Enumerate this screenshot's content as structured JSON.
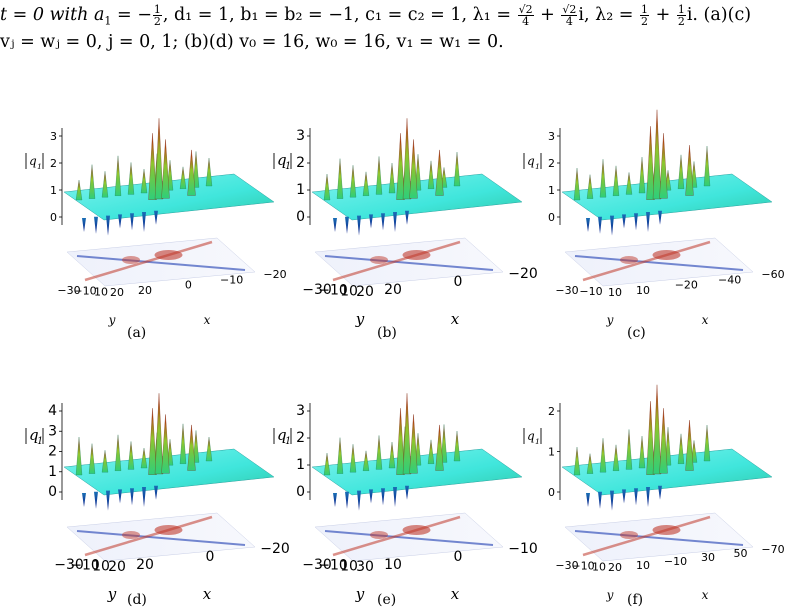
{
  "caption": {
    "line1": {
      "t_eq": "t = 0 with ",
      "a1": "a",
      "a1_sub": "1",
      "a1_eq": " = −",
      "half_num": "1",
      "half_den": "2",
      "d1_part": ", d₁ = 1, b₁ = b₂ = −1, c₁ = c₂ = 1, λ₁ = ",
      "sqrt2": "√2",
      "four": "4",
      "plus": " + ",
      "i_part": "i, λ₂ = ",
      "half2_num": "1",
      "half2_den": "2",
      "tail": "i. (a)(c)"
    },
    "line2": "vⱼ = wⱼ = 0, j = 0, 1; (b)(d) v₀ = 16, w₀ = 16, v₁ = w₁ = 0."
  },
  "axis_vars": {
    "q": "q",
    "q_sub": "1",
    "x": "x",
    "y": "y"
  },
  "panels": [
    {
      "id": "a",
      "label": "(a)",
      "z_ticks": [
        "0",
        "1",
        "2",
        "3"
      ],
      "y_ticks": [
        "−30",
        "−10",
        "10",
        "20"
      ],
      "x_ticks": [
        "20",
        "0",
        "−10",
        "−20"
      ]
    },
    {
      "id": "b",
      "label": "(b)",
      "z_ticks": [
        "0",
        "1",
        "2",
        "3"
      ],
      "y_ticks": [
        "−30",
        "−10",
        "10",
        "20"
      ],
      "x_ticks": [
        "20",
        "0",
        "−20"
      ]
    },
    {
      "id": "c",
      "label": "(c)",
      "z_ticks": [
        "0",
        "1",
        "2",
        "3"
      ],
      "y_ticks": [
        "−30",
        "−10",
        "10"
      ],
      "x_ticks": [
        "10",
        "−20",
        "−40",
        "−60"
      ]
    },
    {
      "id": "d",
      "label": "(d)",
      "z_ticks": [
        "0",
        "1",
        "2",
        "3",
        "4"
      ],
      "y_ticks": [
        "−30",
        "−10",
        "10",
        "20"
      ],
      "x_ticks": [
        "20",
        "0",
        "−20"
      ]
    },
    {
      "id": "e",
      "label": "(e)",
      "z_ticks": [
        "0",
        "1",
        "2",
        "3"
      ],
      "y_ticks": [
        "−30",
        "−10",
        "10",
        "30"
      ],
      "x_ticks": [
        "10",
        "0",
        "−10"
      ]
    },
    {
      "id": "f",
      "label": "(f)",
      "z_ticks": [
        "0",
        "1",
        "2"
      ],
      "y_ticks": [
        "−30",
        "−10",
        "10",
        "20"
      ],
      "x_ticks": [
        "10",
        "−10",
        "30",
        "50",
        "−70"
      ]
    }
  ],
  "colors": {
    "surface_base": "#40e6dc",
    "peak_top": "#c81e0a",
    "valley": "#0a1f8a",
    "contour_red": "#c0392b",
    "contour_blue": "#2e4bb8"
  }
}
